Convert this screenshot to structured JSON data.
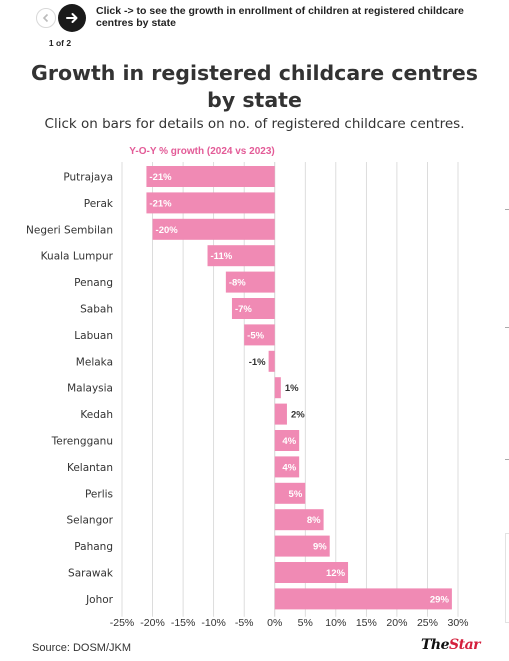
{
  "nav": {
    "instruction": "Click -> to see the growth in enrollment of children at registered childcare centres by state",
    "page_indicator": "1 of 2",
    "prev_icon": "chevron-left-icon",
    "next_icon": "arrow-right-icon"
  },
  "title": "Growth in registered childcare centres by state",
  "subtitle": "Click on bars for details on no. of registered childcare centres.",
  "source": "Source: DOSM/JKM",
  "brand": {
    "prefix": "The",
    "name": "Star"
  },
  "colors": {
    "bar": "#f08ab4",
    "header": "#e35b97",
    "grid": "#d4d4d4",
    "brand_accent": "#d41f3c"
  },
  "chart_data": {
    "type": "bar",
    "orientation": "horizontal",
    "header": "Y-O-Y % growth (2024 vs 2023)",
    "categories": [
      "Putrajaya",
      "Perak",
      "Negeri Sembilan",
      "Kuala Lumpur",
      "Penang",
      "Sabah",
      "Labuan",
      "Melaka",
      "Malaysia",
      "Kedah",
      "Terengganu",
      "Kelantan",
      "Perlis",
      "Selangor",
      "Pahang",
      "Sarawak",
      "Johor"
    ],
    "values": [
      -21,
      -21,
      -20,
      -11,
      -8,
      -7,
      -5,
      -1,
      1,
      2,
      4,
      4,
      5,
      8,
      9,
      12,
      29
    ],
    "value_labels": [
      "-21%",
      "-21%",
      "-20%",
      "-11%",
      "-8%",
      "-7%",
      "-5%",
      "-1%",
      "1%",
      "2%",
      "4%",
      "4%",
      "5%",
      "8%",
      "9%",
      "12%",
      "29%"
    ],
    "xlim": [
      -25,
      30
    ],
    "x_ticks": [
      -25,
      -20,
      -15,
      -10,
      -5,
      0,
      5,
      10,
      15,
      20,
      25,
      30
    ],
    "x_tick_labels": [
      "-25%",
      "-20%",
      "-15%",
      "-10%",
      "-5%",
      "0%",
      "5%",
      "10%",
      "15%",
      "20%",
      "25%",
      "30%"
    ],
    "grid": "vertical"
  }
}
